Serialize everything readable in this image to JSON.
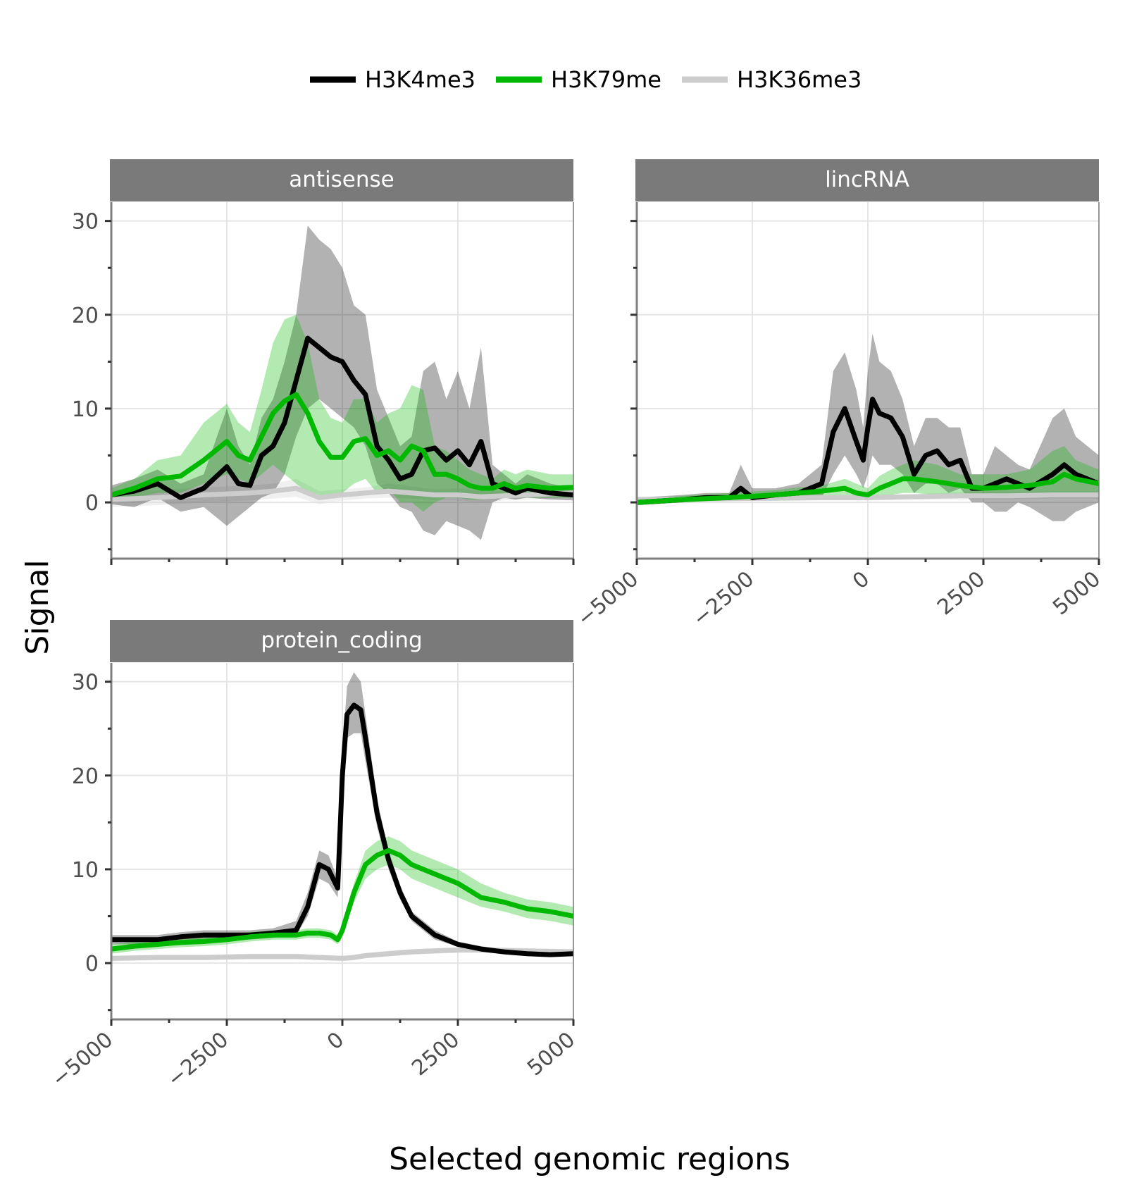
{
  "chart_data": {
    "type": "line",
    "xlabel": "Selected genomic regions",
    "ylabel": "Signal",
    "xlim": [
      -5000,
      5000
    ],
    "ylim": [
      -6,
      30
    ],
    "x_ticks": [
      "−5000",
      "−2500",
      "0",
      "2500",
      "5000"
    ],
    "y_ticks": [
      "0",
      "10",
      "20",
      "30"
    ],
    "grid": true,
    "legend_position": "top",
    "legend": [
      {
        "name": "H3K4me3",
        "color": "#000000"
      },
      {
        "name": "H3K79me",
        "color": "#00b800"
      },
      {
        "name": "H3K36me3",
        "color": "#cccccc"
      }
    ],
    "facets": [
      {
        "label": "antisense",
        "series": [
          {
            "name": "H3K4me3",
            "x": [
              -5000,
              -4500,
              -4000,
              -3500,
              -3000,
              -2500,
              -2250,
              -2000,
              -1750,
              -1500,
              -1250,
              -1000,
              -750,
              -500,
              -250,
              0,
              250,
              500,
              750,
              1000,
              1250,
              1500,
              1750,
              2000,
              2250,
              2500,
              2750,
              3000,
              3250,
              3500,
              3750,
              4000,
              4500,
              5000
            ],
            "y": [
              0.8,
              1.2,
              2.0,
              0.5,
              1.5,
              3.8,
              2.0,
              1.8,
              5.0,
              6.0,
              8.5,
              13.0,
              17.5,
              16.5,
              15.5,
              15.0,
              13.0,
              11.5,
              6.0,
              4.5,
              2.5,
              3.0,
              5.5,
              5.8,
              4.5,
              5.5,
              4.0,
              6.5,
              2.0,
              1.5,
              1.0,
              1.5,
              1.0,
              0.8
            ],
            "lower": [
              -0.2,
              -0.5,
              0.5,
              -1.0,
              -0.5,
              -2.5,
              -1.5,
              -0.5,
              0.5,
              1.0,
              3.0,
              7.0,
              10.0,
              11.0,
              10.0,
              9.0,
              8.0,
              6.0,
              2.0,
              1.0,
              -0.5,
              -1.0,
              -3.0,
              -3.5,
              -2.0,
              -2.5,
              -3.0,
              -4.0,
              0.0,
              0.5,
              0.3,
              0.5,
              0.3,
              0.2
            ],
            "upper": [
              1.8,
              2.5,
              3.5,
              2.0,
              3.0,
              10.0,
              6.0,
              4.0,
              9.0,
              11.0,
              15.0,
              20.0,
              29.5,
              28.0,
              27.0,
              25.0,
              21.0,
              20.0,
              12.0,
              9.0,
              6.0,
              7.0,
              14.0,
              15.0,
              11.0,
              14.0,
              10.0,
              16.5,
              4.0,
              3.0,
              2.0,
              3.0,
              2.0,
              1.5
            ]
          },
          {
            "name": "H3K79me",
            "x": [
              -5000,
              -4500,
              -4000,
              -3500,
              -3000,
              -2500,
              -2250,
              -2000,
              -1750,
              -1500,
              -1250,
              -1000,
              -750,
              -500,
              -250,
              0,
              250,
              500,
              750,
              1000,
              1250,
              1500,
              1750,
              2000,
              2250,
              2500,
              2750,
              3000,
              3250,
              3500,
              3750,
              4000,
              4500,
              5000
            ],
            "y": [
              0.8,
              1.5,
              2.5,
              2.8,
              4.5,
              6.5,
              5.0,
              4.5,
              7.0,
              9.5,
              10.8,
              11.5,
              9.5,
              6.5,
              4.8,
              4.8,
              6.5,
              6.8,
              5.0,
              5.5,
              4.5,
              6.0,
              5.5,
              3.0,
              3.0,
              2.5,
              1.8,
              1.5,
              1.5,
              2.0,
              1.5,
              1.8,
              1.5,
              1.6
            ],
            "lower": [
              0.0,
              0.5,
              1.0,
              1.0,
              2.0,
              3.0,
              2.5,
              2.0,
              3.0,
              4.0,
              3.0,
              2.0,
              1.0,
              0.5,
              0.5,
              1.0,
              2.0,
              2.5,
              1.0,
              1.5,
              0.0,
              0.0,
              -1.0,
              0.0,
              0.5,
              0.5,
              0.3,
              0.3,
              0.5,
              0.5,
              0.5,
              0.5,
              0.5,
              0.5
            ],
            "upper": [
              1.5,
              2.5,
              4.5,
              5.0,
              8.5,
              10.5,
              8.5,
              7.5,
              12.0,
              17.0,
              19.5,
              20.0,
              17.0,
              11.0,
              9.0,
              8.5,
              11.0,
              11.0,
              8.5,
              9.5,
              10.0,
              12.5,
              12.0,
              6.0,
              5.5,
              4.5,
              3.5,
              3.0,
              2.5,
              3.5,
              3.0,
              3.5,
              3.0,
              3.0
            ]
          },
          {
            "name": "H3K36me3",
            "x": [
              -5000,
              -4000,
              -3000,
              -2000,
              -1500,
              -1000,
              -500,
              0,
              500,
              1000,
              1500,
              2000,
              2500,
              3000,
              3500,
              4000,
              4500,
              5000
            ],
            "y": [
              0.3,
              0.5,
              0.8,
              1.0,
              1.2,
              1.5,
              0.5,
              0.8,
              1.0,
              1.2,
              1.0,
              0.8,
              0.8,
              0.6,
              0.7,
              0.8,
              0.9,
              1.0
            ],
            "lower": [
              -0.5,
              -0.3,
              0.0,
              0.2,
              0.4,
              0.6,
              -0.2,
              0.2,
              0.4,
              0.5,
              0.4,
              0.2,
              0.2,
              0.0,
              0.2,
              0.3,
              0.4,
              0.5
            ],
            "upper": [
              1.2,
              1.3,
              1.6,
              1.8,
              2.0,
              2.5,
              1.2,
              1.4,
              1.6,
              2.0,
              1.7,
              1.4,
              1.5,
              1.2,
              1.2,
              1.3,
              1.4,
              1.5
            ]
          }
        ]
      },
      {
        "label": "lincRNA",
        "series": [
          {
            "name": "H3K4me3",
            "x": [
              -5000,
              -4000,
              -3500,
              -3000,
              -2750,
              -2500,
              -2000,
              -1500,
              -1000,
              -750,
              -500,
              -250,
              -100,
              0,
              100,
              250,
              500,
              750,
              1000,
              1250,
              1500,
              1750,
              2000,
              2250,
              2500,
              2750,
              3000,
              3250,
              3500,
              4000,
              4250,
              4500,
              5000
            ],
            "y": [
              0.0,
              0.3,
              0.5,
              0.5,
              1.5,
              0.5,
              0.8,
              1.0,
              2.0,
              7.5,
              10.0,
              6.5,
              4.5,
              8.0,
              11.0,
              9.5,
              9.0,
              7.0,
              3.0,
              5.0,
              5.5,
              4.0,
              4.5,
              1.5,
              1.5,
              2.0,
              2.5,
              2.0,
              1.5,
              3.0,
              4.0,
              3.0,
              2.0
            ],
            "lower": [
              -0.3,
              0.0,
              0.2,
              0.2,
              0.5,
              0.2,
              0.3,
              0.3,
              0.5,
              3.0,
              5.0,
              3.0,
              1.5,
              3.0,
              5.0,
              4.0,
              4.0,
              3.0,
              1.0,
              2.0,
              2.0,
              1.0,
              1.5,
              0.0,
              0.0,
              -1.0,
              -1.0,
              0.0,
              -0.5,
              -2.0,
              -2.0,
              -1.0,
              0.0
            ],
            "upper": [
              0.5,
              0.8,
              1.0,
              1.0,
              4.0,
              1.5,
              1.5,
              2.0,
              4.0,
              14.0,
              16.0,
              12.0,
              8.0,
              14.0,
              18.0,
              15.0,
              14.0,
              11.0,
              6.0,
              9.0,
              9.0,
              8.0,
              8.0,
              3.0,
              3.0,
              6.0,
              5.0,
              4.0,
              3.5,
              9.0,
              10.0,
              7.0,
              5.0
            ]
          },
          {
            "name": "H3K79me",
            "x": [
              -5000,
              -4000,
              -3000,
              -2000,
              -1500,
              -1000,
              -500,
              -250,
              0,
              250,
              500,
              750,
              1000,
              1500,
              2000,
              2500,
              3000,
              3500,
              4000,
              4250,
              4500,
              5000
            ],
            "y": [
              0.0,
              0.3,
              0.5,
              0.8,
              1.0,
              1.2,
              1.5,
              1.0,
              0.8,
              1.5,
              2.0,
              2.5,
              2.5,
              2.2,
              1.8,
              1.5,
              1.6,
              1.8,
              2.2,
              3.0,
              2.5,
              2.0
            ],
            "lower": [
              -0.3,
              0.0,
              0.2,
              0.4,
              0.5,
              0.6,
              0.8,
              0.5,
              0.3,
              0.5,
              0.8,
              1.0,
              1.0,
              0.8,
              0.5,
              0.5,
              0.5,
              0.5,
              0.5,
              1.0,
              0.8,
              0.5
            ],
            "upper": [
              0.4,
              0.7,
              1.0,
              1.3,
              1.6,
              1.8,
              2.5,
              2.0,
              1.5,
              2.8,
              3.5,
              4.0,
              4.5,
              4.0,
              3.0,
              3.0,
              3.0,
              3.5,
              5.5,
              6.0,
              4.5,
              3.5
            ]
          },
          {
            "name": "H3K36me3",
            "x": [
              -5000,
              -3000,
              -1000,
              0,
              1000,
              2000,
              3000,
              4000,
              5000
            ],
            "y": [
              0.3,
              0.4,
              0.5,
              0.5,
              0.6,
              0.7,
              0.7,
              0.8,
              0.8
            ],
            "lower": [
              0.0,
              0.1,
              0.2,
              0.2,
              0.3,
              0.3,
              0.3,
              0.4,
              0.4
            ],
            "upper": [
              0.6,
              0.7,
              0.8,
              0.8,
              0.9,
              1.1,
              1.1,
              1.2,
              1.2
            ]
          }
        ]
      },
      {
        "label": "protein_coding",
        "series": [
          {
            "name": "H3K4me3",
            "x": [
              -5000,
              -4500,
              -4000,
              -3500,
              -3000,
              -2500,
              -2000,
              -1500,
              -1000,
              -750,
              -500,
              -300,
              -100,
              0,
              100,
              250,
              400,
              500,
              750,
              1000,
              1250,
              1500,
              2000,
              2500,
              3000,
              3500,
              4000,
              4500,
              5000
            ],
            "y": [
              2.5,
              2.5,
              2.5,
              2.8,
              3.0,
              3.0,
              3.0,
              3.2,
              3.5,
              6.0,
              10.5,
              10.0,
              8.0,
              20.0,
              26.5,
              27.5,
              27.0,
              24.0,
              16.0,
              11.0,
              7.5,
              5.0,
              3.0,
              2.0,
              1.5,
              1.2,
              1.0,
              0.9,
              1.0
            ],
            "lower": [
              2.0,
              2.0,
              2.0,
              2.3,
              2.5,
              2.5,
              2.5,
              2.7,
              3.0,
              5.0,
              9.0,
              8.5,
              7.0,
              17.5,
              24.0,
              24.5,
              24.5,
              21.5,
              14.5,
              10.0,
              6.8,
              4.5,
              2.5,
              1.8,
              1.2,
              1.0,
              0.8,
              0.7,
              0.8
            ],
            "upper": [
              3.0,
              3.0,
              3.0,
              3.3,
              3.5,
              3.5,
              3.5,
              3.7,
              4.5,
              7.5,
              12.0,
              11.5,
              9.0,
              22.5,
              29.5,
              31.0,
              30.0,
              26.5,
              17.5,
              12.0,
              8.3,
              5.5,
              3.5,
              2.3,
              1.8,
              1.5,
              1.3,
              1.2,
              1.3
            ],
            "note": ""
          },
          {
            "name": "H3K79me",
            "x": [
              -5000,
              -4500,
              -4000,
              -3500,
              -3000,
              -2500,
              -2000,
              -1500,
              -1000,
              -750,
              -500,
              -250,
              -100,
              0,
              250,
              500,
              750,
              1000,
              1250,
              1500,
              2000,
              2500,
              3000,
              3500,
              4000,
              4500,
              5000
            ],
            "y": [
              1.5,
              1.8,
              2.0,
              2.2,
              2.3,
              2.5,
              2.8,
              3.0,
              3.0,
              3.2,
              3.2,
              3.0,
              2.5,
              3.5,
              7.5,
              10.5,
              11.5,
              12.0,
              11.5,
              10.5,
              9.5,
              8.5,
              7.0,
              6.5,
              5.8,
              5.5,
              5.0
            ],
            "lower": [
              1.0,
              1.3,
              1.5,
              1.7,
              1.8,
              2.0,
              2.3,
              2.5,
              2.5,
              2.7,
              2.7,
              2.5,
              2.0,
              2.8,
              6.5,
              9.0,
              10.0,
              10.5,
              10.0,
              9.0,
              8.0,
              7.0,
              6.0,
              5.5,
              4.8,
              4.5,
              4.0
            ],
            "upper": [
              2.0,
              2.3,
              2.5,
              2.7,
              2.8,
              3.0,
              3.3,
              3.5,
              3.5,
              3.7,
              3.7,
              3.5,
              3.0,
              4.2,
              8.5,
              12.0,
              13.0,
              13.5,
              13.0,
              12.0,
              11.0,
              10.0,
              8.5,
              7.5,
              6.8,
              6.5,
              6.0
            ]
          },
          {
            "name": "H3K36me3",
            "x": [
              -5000,
              -4000,
              -3000,
              -2000,
              -1000,
              -500,
              0,
              250,
              500,
              1000,
              1500,
              2000,
              2500,
              3000,
              4000,
              5000
            ],
            "y": [
              0.5,
              0.6,
              0.6,
              0.7,
              0.7,
              0.6,
              0.5,
              0.6,
              0.8,
              1.0,
              1.2,
              1.3,
              1.4,
              1.4,
              1.3,
              1.2
            ],
            "lower": [
              0.2,
              0.3,
              0.3,
              0.4,
              0.4,
              0.3,
              0.2,
              0.3,
              0.5,
              0.7,
              0.9,
              1.0,
              1.1,
              1.1,
              1.0,
              0.9
            ],
            "upper": [
              0.8,
              0.9,
              0.9,
              1.0,
              1.0,
              0.9,
              0.8,
              0.9,
              1.1,
              1.3,
              1.5,
              1.6,
              1.7,
              1.7,
              1.6,
              1.5
            ]
          }
        ]
      }
    ]
  }
}
